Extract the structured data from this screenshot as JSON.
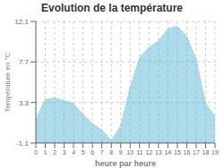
{
  "chart_data": {
    "type": "area",
    "title": "Evolution de la température",
    "xlabel": "heure par heure",
    "ylabel": "Température en °C",
    "x": [
      0,
      1,
      2,
      3,
      4,
      5,
      6,
      7,
      8,
      9,
      10,
      11,
      12,
      13,
      14,
      15,
      16,
      17,
      18,
      19
    ],
    "values": [
      1.5,
      3.6,
      3.8,
      3.5,
      3.2,
      2.0,
      1.0,
      0.3,
      -0.8,
      0.8,
      5.0,
      8.2,
      9.3,
      10.0,
      11.3,
      11.6,
      10.5,
      8.0,
      3.2,
      1.8
    ],
    "color": "#5bb8d4",
    "line_style": "dotted",
    "xlim": [
      0,
      19
    ],
    "xticks": [
      0,
      1,
      2,
      3,
      4,
      5,
      6,
      7,
      8,
      9,
      10,
      11,
      12,
      13,
      14,
      15,
      16,
      17,
      18,
      19
    ],
    "ylim": [
      -1.1,
      12.1
    ],
    "yticks": [
      -1.1,
      3.3,
      7.7,
      12.1
    ],
    "grid": true
  }
}
